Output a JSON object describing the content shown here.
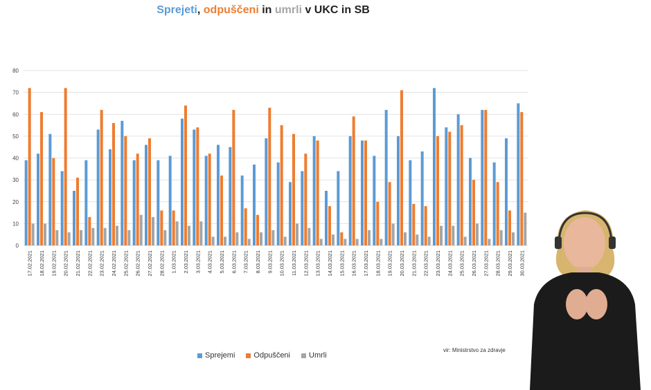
{
  "title": {
    "part1": "Sprejeti",
    "sep1": ", ",
    "part2": "odpuščeni",
    "sep2": " in ",
    "part3": "umrli",
    "rest": " v UKC in SB"
  },
  "source": "vir: Ministrstvo za zdravje",
  "chart_data": {
    "type": "bar",
    "title": "Sprejeti, odpuščeni in umrli v UKC in SB",
    "xlabel": "",
    "ylabel": "",
    "ylim": [
      0,
      80
    ],
    "yticks": [
      0,
      10,
      20,
      30,
      40,
      50,
      60,
      70,
      80
    ],
    "grid": true,
    "legend_position": "bottom",
    "categories": [
      "17.02.2021",
      "18.02.2021",
      "19.02.2021",
      "20.02.2021",
      "21.02.2021",
      "22.02.2021",
      "23.02.2021",
      "24.02.2021",
      "25.02.2021",
      "26.02.2021",
      "27.02.2021",
      "28.02.2021",
      "1.03.2021",
      "2.03.2021",
      "3.03.2021",
      "4.03.2021",
      "5.03.2021",
      "6.03.2021",
      "7.03.2021",
      "8.03.2021",
      "9.03.2021",
      "10.03.2021",
      "11.03.2021",
      "12.03.2021",
      "13.03.2021",
      "14.03.2021",
      "15.03.2021",
      "16.03.2021",
      "17.03.2021",
      "18.03.2021",
      "19.03.2021",
      "20.03.2021",
      "21.03.2021",
      "22.03.2021",
      "23.03.2021",
      "24.03.2021",
      "25.03.2021",
      "26.03.2021",
      "27.03.2021",
      "28.03.2021",
      "29.03.2021",
      "30.03.2021"
    ],
    "series": [
      {
        "name": "Sprejemi",
        "color": "#5b9bd5",
        "values": [
          39,
          42,
          51,
          34,
          25,
          39,
          53,
          44,
          57,
          39,
          46,
          39,
          41,
          58,
          53,
          41,
          46,
          45,
          32,
          37,
          49,
          38,
          29,
          34,
          50,
          25,
          34,
          50,
          48,
          41,
          62,
          50,
          39,
          43,
          72,
          54,
          60,
          40,
          62,
          38,
          49,
          65
        ]
      },
      {
        "name": "Odpuščeni",
        "color": "#ed7d31",
        "values": [
          72,
          61,
          40,
          72,
          31,
          13,
          62,
          56,
          50,
          42,
          49,
          16,
          16,
          64,
          54,
          42,
          32,
          62,
          17,
          14,
          63,
          55,
          51,
          42,
          48,
          18,
          6,
          59,
          48,
          20,
          29,
          71,
          19,
          18,
          50,
          52,
          55,
          30,
          62,
          29,
          16,
          61
        ]
      },
      {
        "name": "Umrli",
        "color": "#a5a5a5",
        "values": [
          10,
          10,
          7,
          6,
          7,
          8,
          8,
          9,
          7,
          14,
          13,
          7,
          11,
          9,
          11,
          4,
          4,
          6,
          3,
          6,
          7,
          4,
          10,
          8,
          3,
          5,
          3,
          3,
          7,
          3,
          10,
          6,
          5,
          4,
          9,
          9,
          4,
          10,
          3,
          7,
          6,
          15
        ]
      }
    ]
  },
  "legend": {
    "items": [
      {
        "label": "Sprejemi",
        "color": "#5b9bd5"
      },
      {
        "label": "Odpuščeni",
        "color": "#ed7d31"
      },
      {
        "label": "Umrli",
        "color": "#a5a5a5"
      }
    ]
  },
  "colors": {
    "title_sprejeti": "#5b9bd5",
    "title_odpusceni": "#ed7d31",
    "title_umrli": "#a5a5a5",
    "gridline": "#d9d9d9"
  }
}
